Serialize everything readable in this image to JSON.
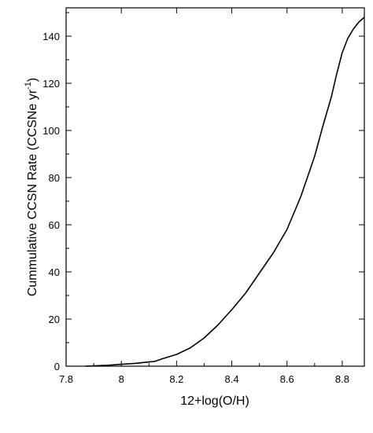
{
  "chart_data": {
    "type": "line",
    "title": "",
    "xlabel": "12+log(O/H)",
    "ylabel_main": "Cummulative CCSN Rate (CCSNe yr",
    "ylabel_sup": "-1",
    "ylabel_close": ")",
    "xlim": [
      7.8,
      8.88
    ],
    "ylim": [
      0,
      152
    ],
    "xticks": [
      7.8,
      8.0,
      8.2,
      8.4,
      8.6,
      8.8
    ],
    "xtick_labels": [
      "7.8",
      "8",
      "8.2",
      "8.4",
      "8.6",
      "8.8"
    ],
    "yticks": [
      0,
      20,
      40,
      60,
      80,
      100,
      120,
      140
    ],
    "ytick_labels": [
      "0",
      "20",
      "40",
      "60",
      "80",
      "100",
      "120",
      "140"
    ],
    "grid": false,
    "legend": "none",
    "color": "#000000",
    "series": [
      {
        "x": [
          7.87,
          7.95,
          8.0,
          8.05,
          8.1,
          8.12,
          8.15,
          8.2,
          8.25,
          8.3,
          8.35,
          8.4,
          8.45,
          8.5,
          8.55,
          8.6,
          8.65,
          8.7,
          8.73,
          8.76,
          8.78,
          8.8,
          8.82,
          8.84,
          8.86,
          8.88
        ],
        "y": [
          0,
          0.4,
          0.8,
          1.2,
          1.8,
          2.0,
          3.2,
          5.0,
          7.8,
          12.0,
          17.5,
          24.0,
          31.0,
          39.5,
          48.0,
          58.0,
          72.0,
          89.0,
          102.0,
          114.0,
          124.0,
          133.0,
          139.0,
          143.0,
          146.0,
          148.0
        ]
      }
    ]
  }
}
